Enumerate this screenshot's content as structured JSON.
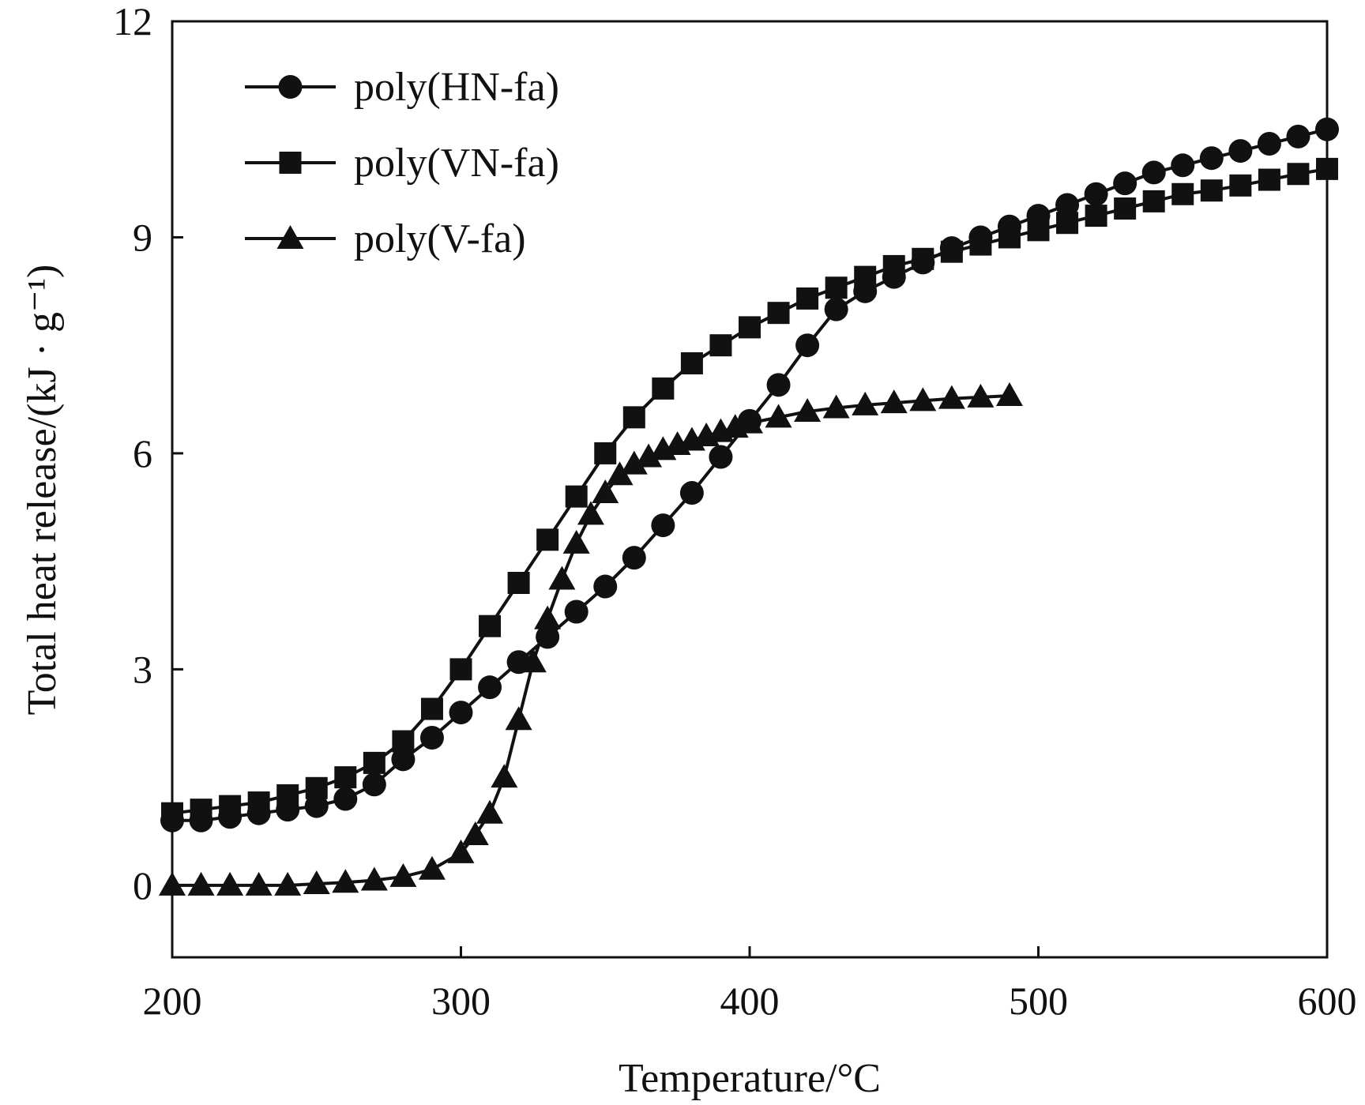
{
  "chart_data": {
    "type": "line",
    "title": "",
    "xlabel": "Temperature/°C",
    "ylabel": "Total heat release/(kJ · g⁻¹)",
    "xlim": [
      200,
      600
    ],
    "ylim": [
      -1,
      12
    ],
    "xticks": [
      200,
      300,
      400,
      500,
      600
    ],
    "yticks": [
      0,
      3,
      6,
      9,
      12
    ],
    "grid": false,
    "legend_position": "top-left",
    "colors": {
      "line": "#111111",
      "axis": "#111111"
    },
    "series": [
      {
        "name": "poly(HN-fa)",
        "marker": "circle",
        "x": [
          200,
          210,
          220,
          230,
          240,
          250,
          260,
          270,
          280,
          290,
          300,
          310,
          320,
          330,
          340,
          350,
          360,
          370,
          380,
          390,
          400,
          410,
          420,
          430,
          440,
          450,
          460,
          470,
          480,
          490,
          500,
          510,
          520,
          530,
          540,
          550,
          560,
          570,
          580,
          590,
          600
        ],
        "y": [
          0.9,
          0.9,
          0.95,
          1.0,
          1.05,
          1.1,
          1.2,
          1.4,
          1.75,
          2.05,
          2.4,
          2.75,
          3.1,
          3.45,
          3.8,
          4.15,
          4.55,
          5.0,
          5.45,
          5.95,
          6.45,
          6.95,
          7.5,
          8.0,
          8.25,
          8.45,
          8.65,
          8.85,
          9.0,
          9.15,
          9.3,
          9.45,
          9.6,
          9.75,
          9.9,
          10.0,
          10.1,
          10.2,
          10.3,
          10.4,
          10.5
        ]
      },
      {
        "name": "poly(VN-fa)",
        "marker": "square",
        "x": [
          200,
          210,
          220,
          230,
          240,
          250,
          260,
          270,
          280,
          290,
          300,
          310,
          320,
          330,
          340,
          350,
          360,
          370,
          380,
          390,
          400,
          410,
          420,
          430,
          440,
          450,
          460,
          470,
          480,
          490,
          500,
          510,
          520,
          530,
          540,
          550,
          560,
          570,
          580,
          590,
          600
        ],
        "y": [
          1.0,
          1.05,
          1.1,
          1.15,
          1.25,
          1.35,
          1.5,
          1.7,
          2.0,
          2.45,
          3.0,
          3.6,
          4.2,
          4.8,
          5.4,
          6.0,
          6.5,
          6.9,
          7.25,
          7.5,
          7.75,
          7.95,
          8.15,
          8.3,
          8.45,
          8.6,
          8.7,
          8.8,
          8.9,
          9.0,
          9.1,
          9.2,
          9.3,
          9.4,
          9.5,
          9.6,
          9.65,
          9.72,
          9.8,
          9.88,
          9.95
        ]
      },
      {
        "name": "poly(V-fa)",
        "marker": "triangle",
        "x": [
          200,
          210,
          220,
          230,
          240,
          250,
          260,
          270,
          280,
          290,
          300,
          305,
          310,
          315,
          320,
          325,
          330,
          335,
          340,
          345,
          350,
          355,
          360,
          365,
          370,
          375,
          380,
          385,
          390,
          395,
          400,
          410,
          420,
          430,
          440,
          450,
          460,
          470,
          480,
          490
        ],
        "y": [
          0.0,
          0.0,
          0.0,
          0.0,
          0.0,
          0.02,
          0.04,
          0.07,
          0.12,
          0.22,
          0.45,
          0.7,
          1.0,
          1.5,
          2.3,
          3.1,
          3.7,
          4.25,
          4.75,
          5.15,
          5.45,
          5.7,
          5.85,
          5.95,
          6.05,
          6.12,
          6.18,
          6.24,
          6.3,
          6.36,
          6.42,
          6.5,
          6.58,
          6.63,
          6.67,
          6.7,
          6.73,
          6.76,
          6.78,
          6.8
        ]
      }
    ]
  }
}
